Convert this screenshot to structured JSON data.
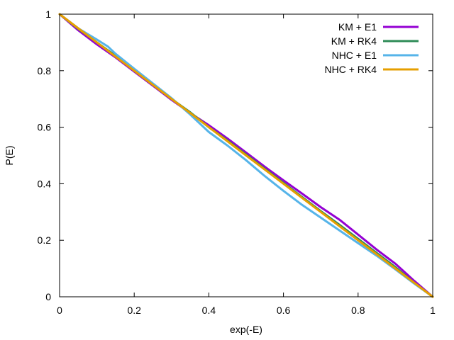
{
  "chart_data": {
    "type": "line",
    "title": "",
    "xlabel": "exp(-E)",
    "ylabel": "P(E)",
    "xlim": [
      0,
      1
    ],
    "ylim": [
      0,
      1
    ],
    "grid": false,
    "legend_position": "top-right",
    "x_ticks": [
      0,
      0.2,
      0.4,
      0.6,
      0.8,
      1
    ],
    "x_tick_labels": [
      "0",
      "0.2",
      "0.4",
      "0.6",
      "0.8",
      "1"
    ],
    "y_ticks": [
      0,
      0.2,
      0.4,
      0.6,
      0.8,
      1
    ],
    "y_tick_labels": [
      "0",
      "0.2",
      "0.4",
      "0.6",
      "0.8",
      "1"
    ],
    "series": [
      {
        "name": "KM + E1",
        "color": "#9400d3",
        "x": [
          0,
          0.05,
          0.1,
          0.15,
          0.2,
          0.25,
          0.3,
          0.35,
          0.4,
          0.45,
          0.5,
          0.55,
          0.6,
          0.65,
          0.7,
          0.75,
          0.8,
          0.85,
          0.9,
          0.95,
          1
        ],
        "y": [
          1,
          0.943,
          0.893,
          0.847,
          0.797,
          0.747,
          0.697,
          0.65,
          0.607,
          0.56,
          0.51,
          0.46,
          0.412,
          0.365,
          0.317,
          0.273,
          0.22,
          0.167,
          0.117,
          0.057,
          0
        ]
      },
      {
        "name": "KM + RK4",
        "color": "#2e8b57",
        "x": [
          0,
          0.05,
          0.1,
          0.15,
          0.2,
          0.25,
          0.3,
          0.35,
          0.4,
          0.45,
          0.5,
          0.55,
          0.6,
          0.65,
          0.7,
          0.75,
          0.8,
          0.85,
          0.9,
          0.95,
          1
        ],
        "y": [
          1,
          0.948,
          0.9,
          0.853,
          0.8,
          0.75,
          0.7,
          0.653,
          0.6,
          0.553,
          0.503,
          0.453,
          0.403,
          0.353,
          0.303,
          0.255,
          0.205,
          0.155,
          0.105,
          0.05,
          0
        ]
      },
      {
        "name": "NHC + E1",
        "color": "#56b4e9",
        "x": [
          0,
          0.05,
          0.1,
          0.13,
          0.15,
          0.2,
          0.25,
          0.3,
          0.35,
          0.4,
          0.45,
          0.5,
          0.55,
          0.6,
          0.65,
          0.7,
          0.75,
          0.8,
          0.85,
          0.9,
          0.95,
          1
        ],
        "y": [
          1,
          0.95,
          0.91,
          0.885,
          0.86,
          0.807,
          0.755,
          0.703,
          0.645,
          0.583,
          0.535,
          0.483,
          0.427,
          0.375,
          0.325,
          0.28,
          0.235,
          0.19,
          0.145,
          0.097,
          0.047,
          0
        ]
      },
      {
        "name": "NHC + RK4",
        "color": "#e69f00",
        "x": [
          0,
          0.05,
          0.1,
          0.15,
          0.2,
          0.25,
          0.3,
          0.35,
          0.4,
          0.45,
          0.5,
          0.55,
          0.6,
          0.65,
          0.7,
          0.75,
          0.8,
          0.85,
          0.9,
          0.95,
          1
        ],
        "y": [
          1,
          0.95,
          0.9,
          0.85,
          0.8,
          0.75,
          0.7,
          0.65,
          0.6,
          0.55,
          0.5,
          0.45,
          0.4,
          0.35,
          0.3,
          0.25,
          0.2,
          0.15,
          0.1,
          0.05,
          0
        ]
      }
    ]
  }
}
